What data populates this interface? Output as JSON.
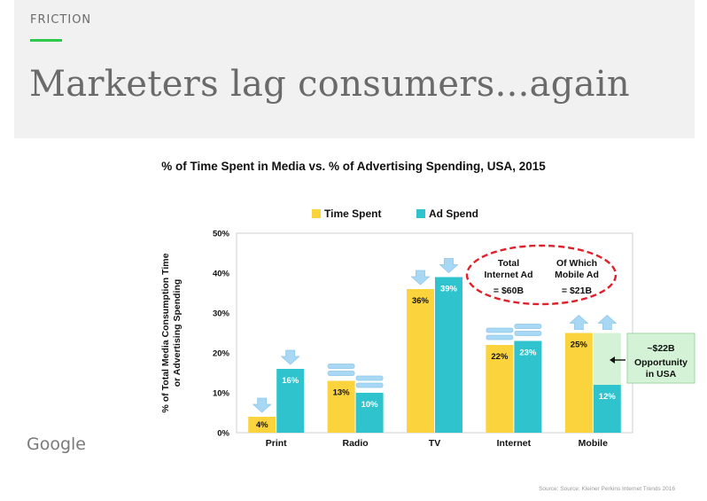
{
  "header": {
    "section": "FRICTION",
    "title": "Marketers lag consumers...again"
  },
  "footer": {
    "logo": "Google",
    "source": "Source: Source: Kleiner Perkins Internet Trends 2016"
  },
  "colors": {
    "time_spent": "#fbd33d",
    "ad_spend": "#2ec3cd",
    "opportunity_fill": "#d4f3d6",
    "arrow": "#a9d8f5",
    "ellipse": "#e0202a"
  },
  "chart_data": {
    "type": "bar",
    "title": "% of Time Spent in Media vs. % of Advertising Spending, USA, 2015",
    "ylabel": "% of Total Media Consumption Time or Advertising Spending",
    "ylabel_lines": [
      "% of Total Media Consumption Time",
      "or Advertising Spending"
    ],
    "xlabel": "",
    "ylim": [
      0,
      50
    ],
    "yticks": [
      "0%",
      "10%",
      "20%",
      "30%",
      "40%",
      "50%"
    ],
    "categories": [
      "Print",
      "Radio",
      "TV",
      "Internet",
      "Mobile"
    ],
    "series": [
      {
        "name": "Time Spent",
        "values": [
          4,
          13,
          36,
          22,
          25
        ],
        "labels": [
          "4%",
          "13%",
          "36%",
          "22%",
          "25%"
        ]
      },
      {
        "name": "Ad Spend",
        "values": [
          16,
          10,
          39,
          23,
          12
        ],
        "labels": [
          "16%",
          "10%",
          "39%",
          "23%",
          "12%"
        ]
      }
    ],
    "trend_indicators": [
      "down",
      "flat",
      "down",
      "flat",
      "up"
    ],
    "opportunity_gap": {
      "category": "Mobile",
      "from": 12,
      "to": 25
    },
    "legend_position": "top",
    "grid": false,
    "annotations": {
      "internet_total": {
        "lines": [
          "Total",
          "Internet Ad",
          "= $60B"
        ]
      },
      "mobile_total": {
        "lines": [
          "Of Which",
          "Mobile Ad",
          "= $21B"
        ]
      },
      "opportunity": {
        "lines": [
          "~$22B",
          "Opportunity",
          "in USA"
        ]
      }
    }
  }
}
